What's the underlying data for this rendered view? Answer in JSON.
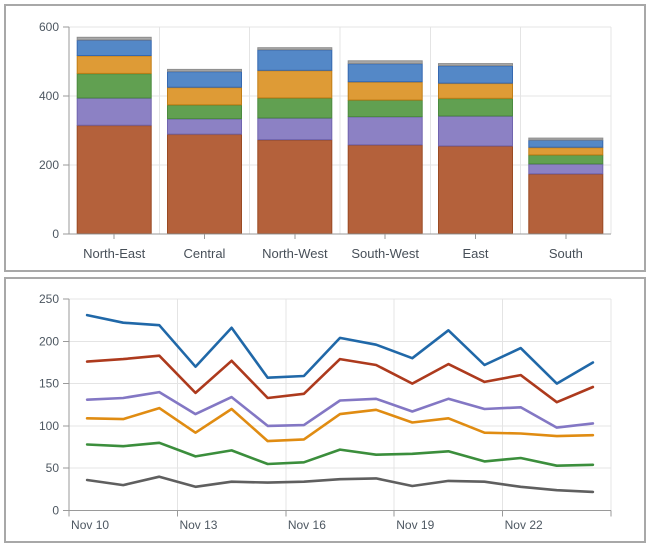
{
  "page": {
    "background": "#ffffff"
  },
  "axis_style": {
    "tick_label_color": "#4d5761",
    "category_label_color": "#474f58",
    "axis_color": "#9a9a9a",
    "grid_color": "#e4e4e4",
    "panel_border_color": "#a8a8a8"
  },
  "chart_data": [
    {
      "type": "bar",
      "stacked": true,
      "title": "",
      "xlabel": "",
      "ylabel": "",
      "legend": "none",
      "grid": true,
      "ylim": [
        0,
        600
      ],
      "ytick_step": 200,
      "yticks": [
        "0",
        "200",
        "400",
        "600"
      ],
      "categories": [
        "North-East",
        "Central",
        "North-West",
        "South-West",
        "East",
        "South"
      ],
      "series": [
        {
          "name": "rust",
          "color": "#b4613b",
          "stroke": "#9a4a23",
          "values": [
            314,
            288,
            272,
            257,
            254,
            173
          ]
        },
        {
          "name": "purple",
          "color": "#8c81c4",
          "stroke": "#7064ae",
          "values": [
            79,
            45,
            63,
            82,
            87,
            29
          ]
        },
        {
          "name": "green",
          "color": "#61a051",
          "stroke": "#4b8a3f",
          "values": [
            71,
            40,
            58,
            48,
            51,
            26
          ]
        },
        {
          "name": "orange",
          "color": "#de9b36",
          "stroke": "#c17d15",
          "values": [
            52,
            51,
            80,
            53,
            44,
            22
          ]
        },
        {
          "name": "blue",
          "color": "#5488c7",
          "stroke": "#3568b0",
          "values": [
            45,
            46,
            60,
            53,
            51,
            21
          ]
        },
        {
          "name": "gray",
          "color": "#a9a9a9",
          "stroke": "#8d8d8d",
          "values": [
            9,
            7,
            7,
            9,
            7,
            7
          ]
        }
      ],
      "stack_totals": [
        570,
        477,
        540,
        502,
        494,
        278
      ]
    },
    {
      "type": "line",
      "title": "",
      "xlabel": "",
      "ylabel": "",
      "legend": "none",
      "grid": true,
      "ylim": [
        0,
        250
      ],
      "ytick_step": 50,
      "yticks": [
        "0",
        "50",
        "100",
        "150",
        "200",
        "250"
      ],
      "categories": [
        "Nov 10",
        "Nov 11",
        "Nov 12",
        "Nov 13",
        "Nov 14",
        "Nov 15",
        "Nov 16",
        "Nov 17",
        "Nov 18",
        "Nov 19",
        "Nov 20",
        "Nov 21",
        "Nov 22",
        "Nov 23",
        "Nov 24"
      ],
      "xtick_labels": [
        "Nov 10",
        "Nov 13",
        "Nov 16",
        "Nov 19",
        "Nov 22"
      ],
      "xtick_every": 3,
      "series": [
        {
          "name": "blue",
          "color": "#2068a8",
          "values": [
            231,
            222,
            219,
            170,
            216,
            157,
            159,
            204,
            196,
            180,
            213,
            172,
            192,
            150,
            175
          ]
        },
        {
          "name": "red",
          "color": "#ad3a1d",
          "values": [
            176,
            179,
            183,
            139,
            177,
            133,
            138,
            179,
            172,
            150,
            173,
            152,
            160,
            128,
            146
          ]
        },
        {
          "name": "purple",
          "color": "#8377c4",
          "values": [
            131,
            133,
            140,
            114,
            134,
            100,
            101,
            130,
            132,
            117,
            132,
            120,
            122,
            98,
            103
          ]
        },
        {
          "name": "orange",
          "color": "#e08c12",
          "values": [
            109,
            108,
            121,
            92,
            120,
            82,
            84,
            114,
            119,
            104,
            109,
            92,
            91,
            88,
            89
          ]
        },
        {
          "name": "green",
          "color": "#3b8e3c",
          "values": [
            78,
            76,
            80,
            64,
            71,
            55,
            57,
            72,
            66,
            67,
            70,
            58,
            62,
            53,
            54
          ]
        },
        {
          "name": "gray",
          "color": "#5f5f5f",
          "values": [
            36,
            30,
            40,
            28,
            34,
            33,
            34,
            37,
            38,
            29,
            35,
            34,
            28,
            24,
            22
          ]
        }
      ]
    }
  ]
}
